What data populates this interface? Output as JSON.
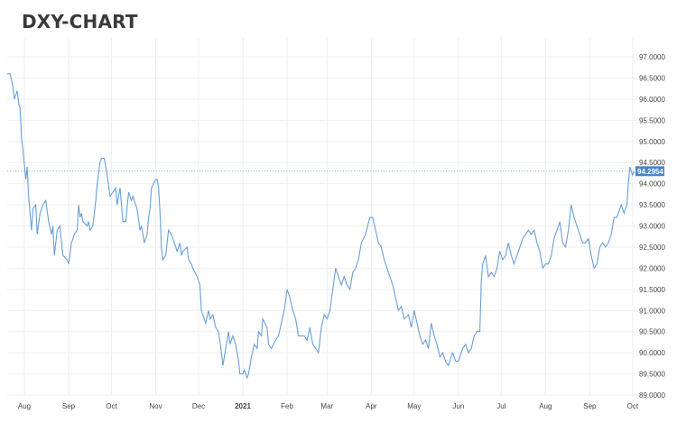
{
  "title": "DXY-CHART",
  "colors": {
    "line": "#6a9fd8",
    "last_badge": "#4a86c8",
    "grid": "#eeeeee",
    "title": "#3a3a3a"
  },
  "chart_data": {
    "type": "line",
    "title": "DXY-CHART",
    "xlabel": "",
    "ylabel": "",
    "grid": true,
    "ylim": [
      89.0,
      97.0
    ],
    "y_ticks": [
      "97.0000",
      "96.5000",
      "96.0000",
      "95.5000",
      "95.0000",
      "94.5000",
      "94.0000",
      "93.5000",
      "93.0000",
      "92.5000",
      "92.0000",
      "91.5000",
      "91.0000",
      "90.5000",
      "90.0000",
      "89.5000",
      "89.0000"
    ],
    "x_ticks": [
      {
        "label": "Aug",
        "date": "2020-08-01"
      },
      {
        "label": "Sep",
        "date": "2020-09-01"
      },
      {
        "label": "Oct",
        "date": "2020-10-01"
      },
      {
        "label": "Nov",
        "date": "2020-11-01"
      },
      {
        "label": "Dec",
        "date": "2020-12-01"
      },
      {
        "label": "2021",
        "date": "2021-01-01",
        "bold": true
      },
      {
        "label": "Feb",
        "date": "2021-02-01"
      },
      {
        "label": "Mar",
        "date": "2021-03-01"
      },
      {
        "label": "Apr",
        "date": "2021-04-01"
      },
      {
        "label": "May",
        "date": "2021-05-01"
      },
      {
        "label": "Jun",
        "date": "2021-06-01"
      },
      {
        "label": "Jul",
        "date": "2021-07-01"
      },
      {
        "label": "Aug",
        "date": "2021-08-01"
      },
      {
        "label": "Sep",
        "date": "2021-09-01"
      },
      {
        "label": "Oct",
        "date": "2021-10-01"
      }
    ],
    "xlim": [
      "2020-07-20",
      "2021-10-03"
    ],
    "last_value": "94.2954",
    "series": [
      {
        "values": [
          [
            "2020-07-20",
            96.6
          ],
          [
            "2020-07-22",
            96.6
          ],
          [
            "2020-07-24",
            96.3
          ],
          [
            "2020-07-25",
            96.0
          ],
          [
            "2020-07-27",
            96.2
          ],
          [
            "2020-07-28",
            95.9
          ],
          [
            "2020-07-29",
            95.8
          ],
          [
            "2020-07-30",
            95.1
          ],
          [
            "2020-07-31",
            94.8
          ],
          [
            "2020-08-02",
            94.1
          ],
          [
            "2020-08-03",
            94.4
          ],
          [
            "2020-08-04",
            93.7
          ],
          [
            "2020-08-05",
            93.3
          ],
          [
            "2020-08-06",
            92.9
          ],
          [
            "2020-08-07",
            93.4
          ],
          [
            "2020-08-09",
            93.5
          ],
          [
            "2020-08-10",
            92.8
          ],
          [
            "2020-08-12",
            93.3
          ],
          [
            "2020-08-14",
            93.5
          ],
          [
            "2020-08-16",
            93.6
          ],
          [
            "2020-08-18",
            93.1
          ],
          [
            "2020-08-20",
            92.8
          ],
          [
            "2020-08-21",
            93.0
          ],
          [
            "2020-08-22",
            92.3
          ],
          [
            "2020-08-24",
            92.9
          ],
          [
            "2020-08-26",
            93.0
          ],
          [
            "2020-08-27",
            92.6
          ],
          [
            "2020-08-28",
            92.3
          ],
          [
            "2020-08-31",
            92.2
          ],
          [
            "2020-09-01",
            92.1
          ],
          [
            "2020-09-03",
            92.6
          ],
          [
            "2020-09-05",
            92.8
          ],
          [
            "2020-09-07",
            92.9
          ],
          [
            "2020-09-08",
            93.5
          ],
          [
            "2020-09-09",
            93.2
          ],
          [
            "2020-09-10",
            93.3
          ],
          [
            "2020-09-11",
            93.1
          ],
          [
            "2020-09-14",
            93.0
          ],
          [
            "2020-09-15",
            93.1
          ],
          [
            "2020-09-16",
            92.9
          ],
          [
            "2020-09-18",
            93.0
          ],
          [
            "2020-09-20",
            93.6
          ],
          [
            "2020-09-21",
            94.0
          ],
          [
            "2020-09-23",
            94.5
          ],
          [
            "2020-09-24",
            94.6
          ],
          [
            "2020-09-26",
            94.6
          ],
          [
            "2020-09-28",
            94.2
          ],
          [
            "2020-09-30",
            93.7
          ],
          [
            "2020-10-02",
            93.8
          ],
          [
            "2020-10-04",
            93.9
          ],
          [
            "2020-10-05",
            93.5
          ],
          [
            "2020-10-07",
            93.9
          ],
          [
            "2020-10-09",
            93.1
          ],
          [
            "2020-10-11",
            93.1
          ],
          [
            "2020-10-13",
            93.8
          ],
          [
            "2020-10-15",
            93.6
          ],
          [
            "2020-10-16",
            93.7
          ],
          [
            "2020-10-19",
            93.4
          ],
          [
            "2020-10-21",
            92.9
          ],
          [
            "2020-10-22",
            93.0
          ],
          [
            "2020-10-23",
            92.8
          ],
          [
            "2020-10-24",
            92.6
          ],
          [
            "2020-10-26",
            92.8
          ],
          [
            "2020-10-27",
            93.2
          ],
          [
            "2020-10-28",
            93.4
          ],
          [
            "2020-10-29",
            93.9
          ],
          [
            "2020-11-01",
            94.1
          ],
          [
            "2020-11-02",
            94.1
          ],
          [
            "2020-11-03",
            93.9
          ],
          [
            "2020-11-04",
            93.3
          ],
          [
            "2020-11-05",
            92.5
          ],
          [
            "2020-11-06",
            92.2
          ],
          [
            "2020-11-08",
            92.3
          ],
          [
            "2020-11-10",
            92.9
          ],
          [
            "2020-11-12",
            92.8
          ],
          [
            "2020-11-14",
            92.6
          ],
          [
            "2020-11-16",
            92.4
          ],
          [
            "2020-11-18",
            92.6
          ],
          [
            "2020-11-19",
            92.3
          ],
          [
            "2020-11-20",
            92.4
          ],
          [
            "2020-11-23",
            92.5
          ],
          [
            "2020-11-24",
            92.2
          ],
          [
            "2020-11-26",
            92.1
          ],
          [
            "2020-11-27",
            92.0
          ],
          [
            "2020-11-30",
            91.8
          ],
          [
            "2020-12-02",
            91.6
          ],
          [
            "2020-12-03",
            91.0
          ],
          [
            "2020-12-04",
            90.9
          ],
          [
            "2020-12-06",
            90.7
          ],
          [
            "2020-12-08",
            91.0
          ],
          [
            "2020-12-09",
            90.8
          ],
          [
            "2020-12-11",
            90.9
          ],
          [
            "2020-12-13",
            90.6
          ],
          [
            "2020-12-15",
            90.5
          ],
          [
            "2020-12-17",
            90.0
          ],
          [
            "2020-12-18",
            89.7
          ],
          [
            "2020-12-20",
            90.1
          ],
          [
            "2020-12-22",
            90.5
          ],
          [
            "2020-12-23",
            90.2
          ],
          [
            "2020-12-25",
            90.4
          ],
          [
            "2020-12-27",
            90.2
          ],
          [
            "2020-12-29",
            89.8
          ],
          [
            "2020-12-30",
            89.5
          ],
          [
            "2021-01-01",
            89.5
          ],
          [
            "2021-01-02",
            89.6
          ],
          [
            "2021-01-04",
            89.4
          ],
          [
            "2021-01-05",
            89.5
          ],
          [
            "2021-01-07",
            89.9
          ],
          [
            "2021-01-09",
            90.2
          ],
          [
            "2021-01-11",
            90.1
          ],
          [
            "2021-01-12",
            90.5
          ],
          [
            "2021-01-14",
            90.4
          ],
          [
            "2021-01-15",
            90.8
          ],
          [
            "2021-01-18",
            90.6
          ],
          [
            "2021-01-19",
            90.2
          ],
          [
            "2021-01-21",
            90.1
          ],
          [
            "2021-01-24",
            90.3
          ],
          [
            "2021-01-26",
            90.4
          ],
          [
            "2021-01-28",
            90.7
          ],
          [
            "2021-01-30",
            91.0
          ],
          [
            "2021-02-01",
            91.5
          ],
          [
            "2021-02-03",
            91.3
          ],
          [
            "2021-02-05",
            91.0
          ],
          [
            "2021-02-07",
            90.8
          ],
          [
            "2021-02-09",
            90.4
          ],
          [
            "2021-02-11",
            90.4
          ],
          [
            "2021-02-13",
            90.4
          ],
          [
            "2021-02-15",
            90.3
          ],
          [
            "2021-02-17",
            90.6
          ],
          [
            "2021-02-19",
            90.2
          ],
          [
            "2021-02-21",
            90.1
          ],
          [
            "2021-02-23",
            90.0
          ],
          [
            "2021-02-25",
            90.6
          ],
          [
            "2021-02-27",
            90.9
          ],
          [
            "2021-03-01",
            90.8
          ],
          [
            "2021-03-03",
            91.0
          ],
          [
            "2021-03-05",
            91.5
          ],
          [
            "2021-03-07",
            92.0
          ],
          [
            "2021-03-09",
            91.8
          ],
          [
            "2021-03-11",
            91.6
          ],
          [
            "2021-03-13",
            91.8
          ],
          [
            "2021-03-15",
            91.6
          ],
          [
            "2021-03-17",
            91.5
          ],
          [
            "2021-03-19",
            91.9
          ],
          [
            "2021-03-21",
            92.0
          ],
          [
            "2021-03-23",
            92.2
          ],
          [
            "2021-03-25",
            92.6
          ],
          [
            "2021-03-28",
            92.8
          ],
          [
            "2021-03-31",
            93.2
          ],
          [
            "2021-04-02",
            93.2
          ],
          [
            "2021-04-04",
            92.9
          ],
          [
            "2021-04-06",
            92.6
          ],
          [
            "2021-04-08",
            92.5
          ],
          [
            "2021-04-10",
            92.2
          ],
          [
            "2021-04-12",
            92.0
          ],
          [
            "2021-04-14",
            91.8
          ],
          [
            "2021-04-16",
            91.6
          ],
          [
            "2021-04-18",
            91.3
          ],
          [
            "2021-04-20",
            91.0
          ],
          [
            "2021-04-22",
            91.1
          ],
          [
            "2021-04-24",
            90.8
          ],
          [
            "2021-04-27",
            90.9
          ],
          [
            "2021-04-29",
            90.6
          ],
          [
            "2021-05-01",
            91.0
          ],
          [
            "2021-05-03",
            90.7
          ],
          [
            "2021-05-05",
            90.4
          ],
          [
            "2021-05-07",
            90.2
          ],
          [
            "2021-05-09",
            90.3
          ],
          [
            "2021-05-11",
            90.1
          ],
          [
            "2021-05-13",
            90.7
          ],
          [
            "2021-05-15",
            90.4
          ],
          [
            "2021-05-17",
            90.2
          ],
          [
            "2021-05-19",
            89.9
          ],
          [
            "2021-05-21",
            90.0
          ],
          [
            "2021-05-23",
            89.8
          ],
          [
            "2021-05-25",
            89.7
          ],
          [
            "2021-05-27",
            89.9
          ],
          [
            "2021-05-28",
            90.0
          ],
          [
            "2021-05-30",
            89.8
          ],
          [
            "2021-06-01",
            89.8
          ],
          [
            "2021-06-02",
            89.9
          ],
          [
            "2021-06-04",
            90.1
          ],
          [
            "2021-06-06",
            90.2
          ],
          [
            "2021-06-08",
            90.0
          ],
          [
            "2021-06-10",
            90.1
          ],
          [
            "2021-06-12",
            90.4
          ],
          [
            "2021-06-14",
            90.5
          ],
          [
            "2021-06-16",
            90.5
          ],
          [
            "2021-06-17",
            91.7
          ],
          [
            "2021-06-18",
            92.1
          ],
          [
            "2021-06-20",
            92.3
          ],
          [
            "2021-06-22",
            91.8
          ],
          [
            "2021-06-24",
            91.9
          ],
          [
            "2021-06-26",
            91.8
          ],
          [
            "2021-06-28",
            92.0
          ],
          [
            "2021-06-30",
            92.4
          ],
          [
            "2021-07-02",
            92.2
          ],
          [
            "2021-07-04",
            92.3
          ],
          [
            "2021-07-06",
            92.6
          ],
          [
            "2021-07-08",
            92.3
          ],
          [
            "2021-07-10",
            92.1
          ],
          [
            "2021-07-12",
            92.3
          ],
          [
            "2021-07-14",
            92.5
          ],
          [
            "2021-07-16",
            92.7
          ],
          [
            "2021-07-18",
            92.8
          ],
          [
            "2021-07-20",
            92.9
          ],
          [
            "2021-07-22",
            92.8
          ],
          [
            "2021-07-24",
            92.9
          ],
          [
            "2021-07-26",
            92.6
          ],
          [
            "2021-07-28",
            92.4
          ],
          [
            "2021-07-30",
            92.0
          ],
          [
            "2021-08-01",
            92.1
          ],
          [
            "2021-08-03",
            92.1
          ],
          [
            "2021-08-05",
            92.3
          ],
          [
            "2021-08-07",
            92.7
          ],
          [
            "2021-08-09",
            92.9
          ],
          [
            "2021-08-11",
            93.1
          ],
          [
            "2021-08-13",
            92.6
          ],
          [
            "2021-08-15",
            92.5
          ],
          [
            "2021-08-17",
            92.9
          ],
          [
            "2021-08-19",
            93.5
          ],
          [
            "2021-08-21",
            93.2
          ],
          [
            "2021-08-23",
            93.0
          ],
          [
            "2021-08-25",
            92.8
          ],
          [
            "2021-08-27",
            92.6
          ],
          [
            "2021-08-29",
            92.6
          ],
          [
            "2021-08-31",
            92.7
          ],
          [
            "2021-09-02",
            92.3
          ],
          [
            "2021-09-04",
            92.0
          ],
          [
            "2021-09-06",
            92.1
          ],
          [
            "2021-09-08",
            92.5
          ],
          [
            "2021-09-10",
            92.6
          ],
          [
            "2021-09-12",
            92.5
          ],
          [
            "2021-09-14",
            92.6
          ],
          [
            "2021-09-16",
            92.8
          ],
          [
            "2021-09-18",
            93.2
          ],
          [
            "2021-09-20",
            93.2
          ],
          [
            "2021-09-22",
            93.4
          ],
          [
            "2021-09-23",
            93.5
          ],
          [
            "2021-09-25",
            93.3
          ],
          [
            "2021-09-27",
            93.5
          ],
          [
            "2021-09-28",
            94.0
          ],
          [
            "2021-09-29",
            94.4
          ],
          [
            "2021-09-30",
            94.3
          ],
          [
            "2021-10-01",
            94.2
          ],
          [
            "2021-10-02",
            94.3
          ]
        ]
      }
    ]
  }
}
